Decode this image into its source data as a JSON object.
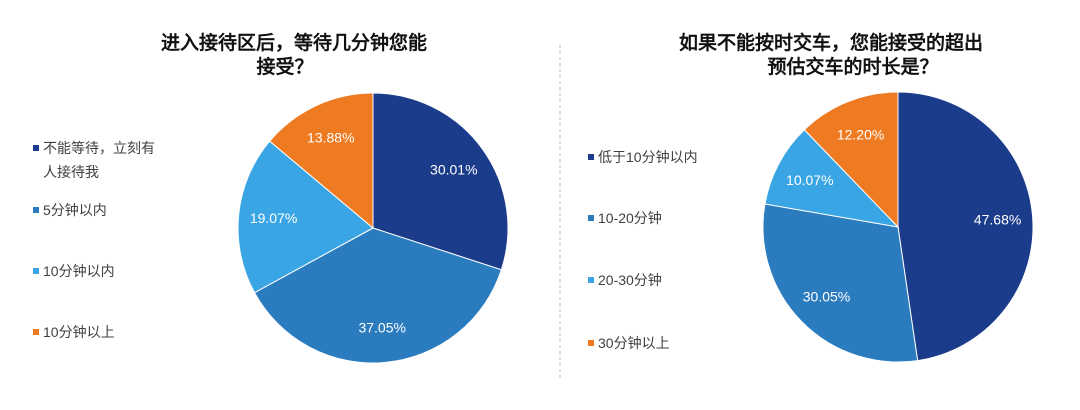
{
  "chart_data": [
    {
      "type": "pie",
      "title_lines": [
        "进入接待区后，等待几分钟您能",
        "接受？"
      ],
      "categories": [
        "不能等待，立刻有人接待我",
        "5分钟以内",
        "10分钟以内",
        "10分钟以上"
      ],
      "values": [
        30.01,
        37.05,
        19.07,
        13.88
      ],
      "data_labels": [
        "30.01%",
        "37.05%",
        "19.07%",
        "13.88%"
      ],
      "colors": [
        "#1b3b8b",
        "#2b7bbf",
        "#3aa5e4",
        "#ee7a21"
      ],
      "legend_position": "left"
    },
    {
      "type": "pie",
      "title_lines": [
        "如果不能按时交车，您能接受的超出",
        "预估交车的时长是？"
      ],
      "categories": [
        "低于10分钟以内",
        "10-20分钟",
        "20-30分钟",
        "30分钟以上"
      ],
      "values": [
        47.68,
        30.05,
        10.07,
        12.2
      ],
      "data_labels": [
        "47.68%",
        "30.05%",
        "10.07%",
        "12.20%"
      ],
      "colors": [
        "#1b3b8b",
        "#2b7bbf",
        "#3aa5e4",
        "#ee7a21"
      ],
      "legend_position": "left"
    }
  ]
}
